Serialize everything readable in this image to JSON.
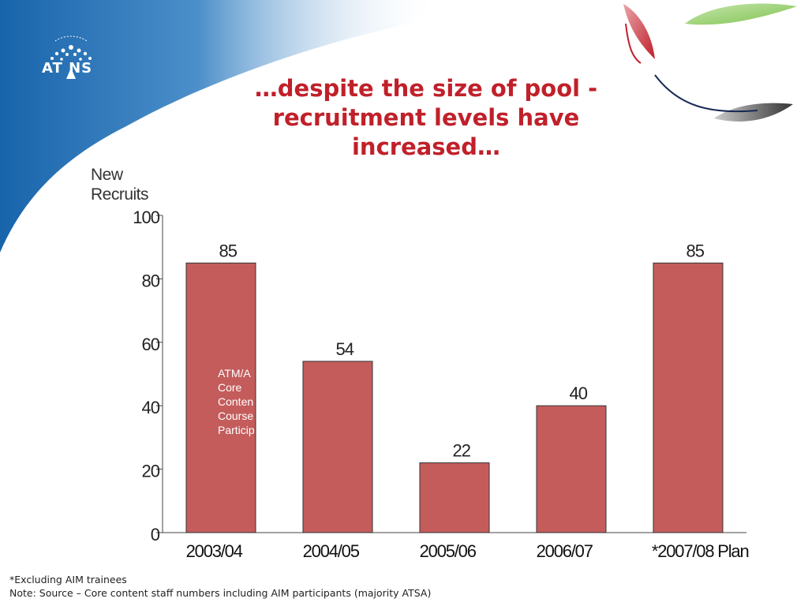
{
  "slide": {
    "logo_text": "AT NS",
    "title_lines": [
      "…despite the size of pool -",
      "recruitment levels have",
      "increased…"
    ],
    "footnotes": [
      "*Excluding AIM trainees",
      "Note: Source – Core content staff numbers including AIM participants (majority ATSA)"
    ],
    "colors": {
      "title": "#c0202a",
      "bar": "#c45c5c",
      "header_blue": "#1f6cb0"
    }
  },
  "chart_data": {
    "type": "bar",
    "ylabel": [
      "New",
      "Recruits"
    ],
    "categories": [
      "2003/04",
      "2004/05",
      "2005/06",
      "2006/07",
      "*2007/08 Plan"
    ],
    "values": [
      85,
      54,
      22,
      40,
      85
    ],
    "ylim": [
      0,
      100
    ],
    "yticks": [
      0,
      20,
      40,
      60,
      80,
      100
    ],
    "grid": false,
    "annotation_lines": [
      "ATM/A",
      "Core",
      "Conten",
      "Course",
      "Particip"
    ]
  }
}
